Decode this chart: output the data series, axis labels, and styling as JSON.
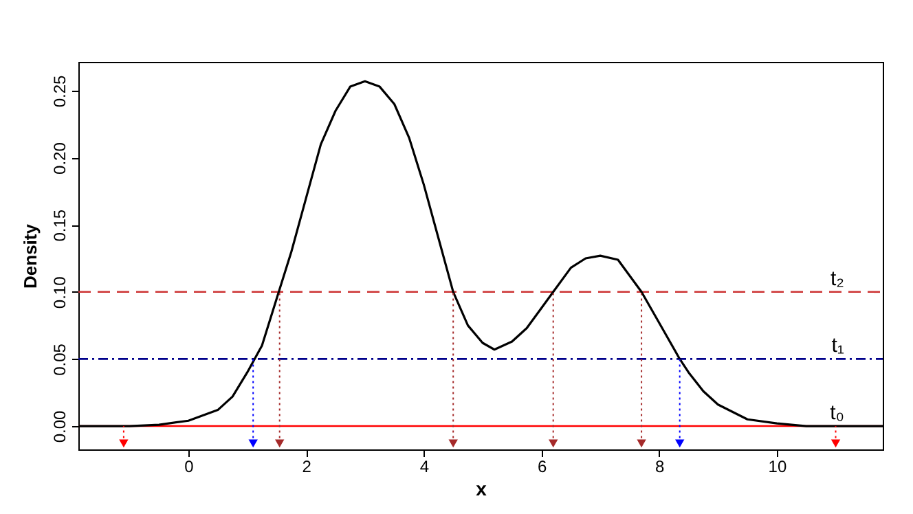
{
  "chart_data": {
    "type": "line",
    "xlabel": "x",
    "ylabel": "Density",
    "xlim": [
      -1.87,
      11.8
    ],
    "xticks": [
      0,
      2,
      4,
      6,
      8,
      10
    ],
    "ylim": [
      -0.0174,
      0.2715
    ],
    "yticks": [
      {
        "value": 0,
        "label": "0.00"
      },
      {
        "value": 0.05,
        "label": "0.05"
      },
      {
        "value": 0.1,
        "label": "0.10"
      },
      {
        "value": 0.15,
        "label": "0.15"
      },
      {
        "value": 0.2,
        "label": "0.20"
      },
      {
        "value": 0.25,
        "label": "0.25"
      }
    ],
    "grid": false,
    "line_style": "solid",
    "series": [
      {
        "color": "#000000",
        "marker": "none",
        "x": [
          -1.87,
          -1,
          -0.5,
          0,
          0.5,
          0.75,
          1.0,
          1.25,
          1.5,
          1.75,
          2.0,
          2.25,
          2.5,
          2.75,
          3.0,
          3.25,
          3.5,
          3.75,
          4.0,
          4.25,
          4.5,
          4.75,
          5.0,
          5.2,
          5.5,
          5.75,
          6.0,
          6.2,
          6.5,
          6.75,
          7.0,
          7.3,
          7.7,
          8.0,
          8.35,
          8.5,
          8.75,
          9.0,
          9.5,
          10,
          10.5,
          11,
          11.8
        ],
        "values": [
          0,
          0,
          0.001,
          0.004,
          0.012,
          0.022,
          0.04,
          0.06,
          0.095,
          0.13,
          0.17,
          0.21,
          0.235,
          0.253,
          0.257,
          0.253,
          0.24,
          0.215,
          0.18,
          0.14,
          0.1,
          0.075,
          0.062,
          0.057,
          0.063,
          0.073,
          0.088,
          0.1,
          0.118,
          0.125,
          0.127,
          0.124,
          0.1,
          0.077,
          0.05,
          0.04,
          0.026,
          0.016,
          0.005,
          0.002,
          0,
          0,
          0
        ]
      },
      {
        "type": "scatter",
        "color": "#ff0000",
        "marker": "triangle",
        "line_style": "dotted",
        "x": [
          -1.1,
          11.0
        ],
        "values": [
          -0.013,
          -0.013
        ],
        "errors": [
          [
            -0.013,
            0
          ],
          [
            -0.013,
            0
          ]
        ]
      },
      {
        "type": "scatter",
        "color": "#0000ff",
        "marker": "triangle",
        "line_style": "dotted",
        "x": [
          1.1,
          8.35
        ],
        "values": [
          -0.013,
          -0.013
        ],
        "errors": [
          [
            -0.013,
            0.05
          ],
          [
            -0.013,
            0.05
          ]
        ]
      },
      {
        "type": "scatter",
        "color": "#a52a2a",
        "marker": "triangle",
        "line_style": "dotted",
        "x": [
          1.55,
          4.5,
          6.2,
          7.7
        ],
        "values": [
          -0.013,
          -0.013,
          -0.013,
          -0.013
        ],
        "errors": [
          [
            -0.013,
            0.1
          ],
          [
            -0.013,
            0.1
          ],
          [
            -0.013,
            0.1
          ],
          [
            -0.013,
            0.1
          ]
        ]
      }
    ],
    "ref_lines": [
      {
        "axis": "y",
        "value": 0,
        "label": "t₀",
        "color": "#ff0000",
        "line_style": "solid"
      },
      {
        "axis": "y",
        "value": 0.05,
        "label": "t₁",
        "color": "#00008b",
        "line_style": "dashdot"
      },
      {
        "axis": "y",
        "value": 0.1,
        "label": "t₂",
        "color": "#cd3333",
        "line_style": "dashed"
      }
    ]
  }
}
